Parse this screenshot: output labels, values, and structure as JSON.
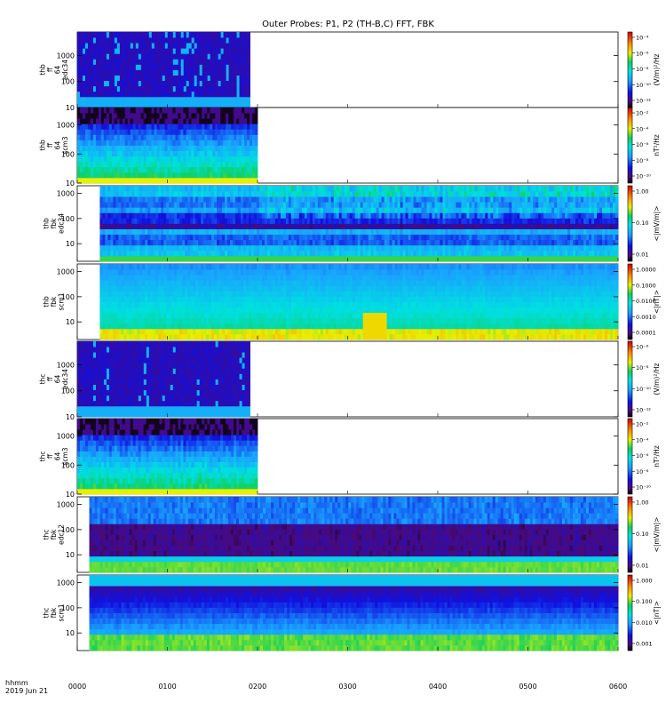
{
  "chart_data": {
    "type": "heatmap",
    "title": "Outer Probes: P1, P2 (TH-B,C) FFT, FBK",
    "x_axis": {
      "ticks": [
        "0000",
        "0100",
        "0200",
        "0300",
        "0400",
        "0500",
        "0600"
      ],
      "label_line1": "hhmm",
      "label_line2": "2019 Jun 21"
    },
    "panels": [
      {
        "ylabel": [
          "thb",
          "ff",
          "64",
          "edc34"
        ],
        "yticks": [
          "10",
          "100",
          "1000"
        ],
        "y_range_hz": [
          10,
          8000
        ],
        "data_span": [
          "0000",
          "0155"
        ],
        "style": "fft_e",
        "colorbar": {
          "label": "(V/m)²/Hz",
          "ticks": [
            "10⁻¹²",
            "10⁻¹⁰",
            "10⁻⁸",
            "10⁻⁶",
            "10⁻⁴"
          ]
        }
      },
      {
        "ylabel": [
          "thb",
          "ff",
          "64",
          "scm3"
        ],
        "yticks": [
          "10",
          "100",
          "1000"
        ],
        "y_range_hz": [
          10,
          4000
        ],
        "data_span": [
          "0000",
          "0200"
        ],
        "style": "fft_b",
        "colorbar": {
          "label": "nT²/Hz",
          "ticks": [
            "10⁻¹⁰",
            "10⁻⁸",
            "10⁻⁶",
            "10⁻⁴",
            "10⁻²"
          ]
        }
      },
      {
        "ylabel": [
          "thb",
          "fbk",
          "edc34"
        ],
        "yticks": [
          "10",
          "100",
          "1000"
        ],
        "y_range_hz": [
          2,
          2000
        ],
        "data_span": [
          "0015",
          "0600"
        ],
        "style": "fbk_e",
        "colorbar": {
          "label": "<|mV/m|>",
          "ticks": [
            "0.01",
            "0.10",
            "1.00"
          ]
        }
      },
      {
        "ylabel": [
          "thb",
          "fbk",
          "scm1"
        ],
        "yticks": [
          "10",
          "100",
          "1000"
        ],
        "y_range_hz": [
          2,
          2000
        ],
        "data_span": [
          "0015",
          "0600"
        ],
        "style": "fbk_b",
        "colorbar": {
          "label": "<|nT|>",
          "ticks": [
            "0.0001",
            "0.0010",
            "0.0100",
            "0.1000",
            "1.0000"
          ]
        }
      },
      {
        "ylabel": [
          "thc",
          "ff",
          "64",
          "edc34"
        ],
        "yticks": [
          "10",
          "100",
          "1000"
        ],
        "y_range_hz": [
          10,
          8000
        ],
        "data_span": [
          "0000",
          "0155"
        ],
        "style": "fft_e",
        "colorbar": {
          "label": "(V/m)²/Hz",
          "ticks": [
            "10⁻¹²",
            "10⁻¹⁰",
            "10⁻⁸",
            "10⁻⁶"
          ]
        }
      },
      {
        "ylabel": [
          "thc",
          "ff",
          "64",
          "scm3"
        ],
        "yticks": [
          "10",
          "100",
          "1000"
        ],
        "y_range_hz": [
          10,
          4000
        ],
        "data_span": [
          "0000",
          "0200"
        ],
        "style": "fft_b",
        "colorbar": {
          "label": "nT²/Hz",
          "ticks": [
            "10⁻¹⁰",
            "10⁻⁸",
            "10⁻⁶",
            "10⁻⁴",
            "10⁻²"
          ]
        }
      },
      {
        "ylabel": [
          "thc",
          "fbk",
          "edc12"
        ],
        "yticks": [
          "10",
          "100",
          "1000"
        ],
        "y_range_hz": [
          2,
          2000
        ],
        "data_span": [
          "0008",
          "0600"
        ],
        "style": "fbk_e2",
        "colorbar": {
          "label": "<|mV/m|>",
          "ticks": [
            "0.01",
            "0.10",
            "1.00"
          ]
        }
      },
      {
        "ylabel": [
          "thc",
          "fbk",
          "scm1"
        ],
        "yticks": [
          "10",
          "100",
          "1000"
        ],
        "y_range_hz": [
          2,
          2000
        ],
        "data_span": [
          "0008",
          "0600"
        ],
        "style": "fbk_b2",
        "colorbar": {
          "label": "<|nT|>",
          "ticks": [
            "0.001",
            "0.010",
            "0.100",
            "1.000"
          ]
        }
      }
    ]
  }
}
